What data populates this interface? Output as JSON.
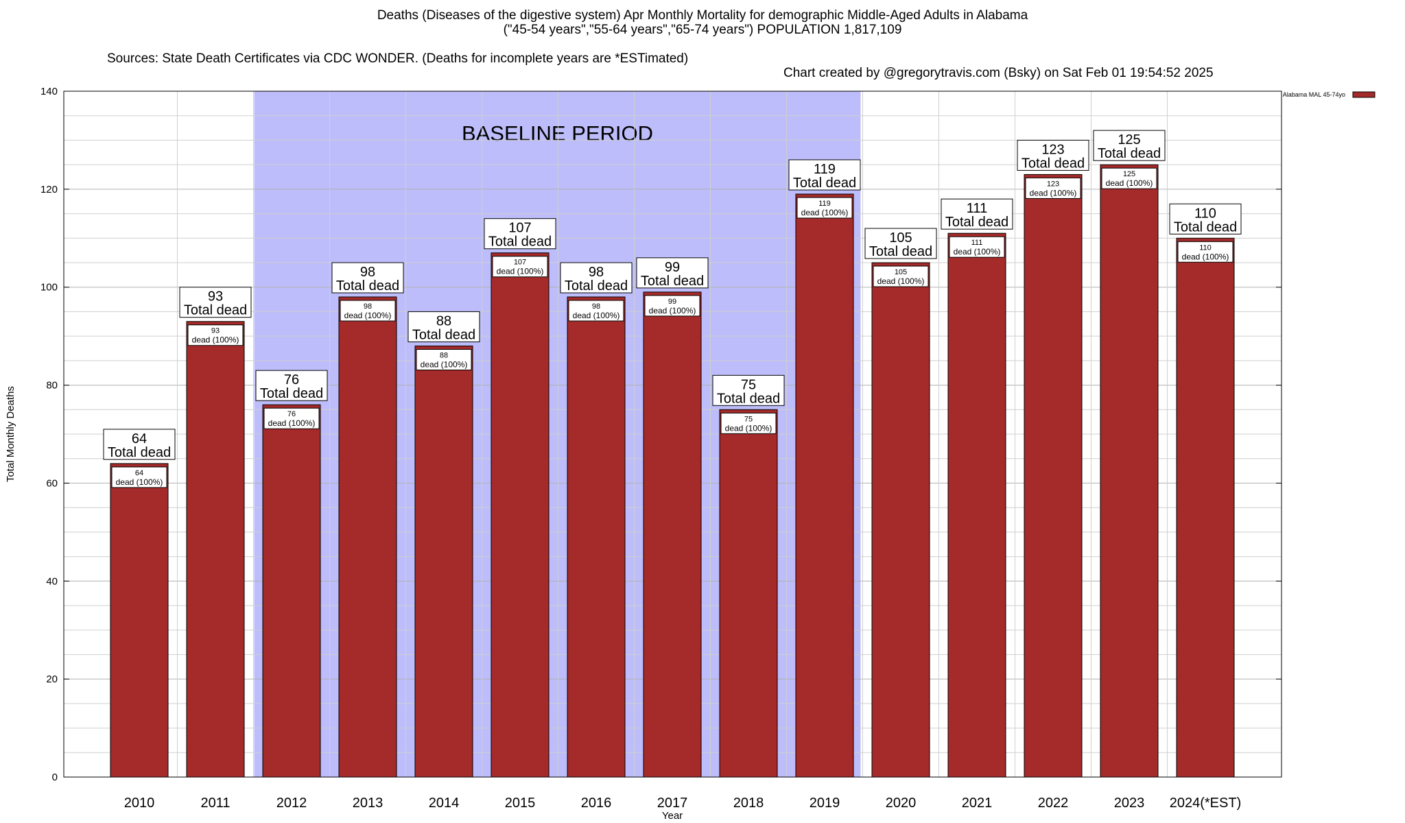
{
  "header": {
    "title_line1": "Deaths (Diseases of the digestive system) Apr Monthly Mortality for demographic Middle-Aged Adults in Alabama",
    "title_line2": "(\"45-54 years\",\"55-64 years\",\"65-74 years\") POPULATION 1,817,109",
    "sources": "Sources: State Death Certificates via CDC WONDER. (Deaths for incomplete years are *ESTimated)",
    "credit": "Chart created by @gregorytravis.com (Bsky) on Sat Feb 01 19:54:52 2025"
  },
  "chart_data": {
    "type": "bar",
    "xlabel": "Year",
    "ylabel": "Total Monthly Deaths",
    "ylim": [
      0,
      140
    ],
    "y_ticks": [
      0,
      20,
      40,
      60,
      80,
      100,
      120,
      140
    ],
    "y_minor_step": 5,
    "grid": true,
    "legend": {
      "placement": "top-right",
      "entries": [
        "Alabama MAL 45-74yo"
      ]
    },
    "categories": [
      "2010",
      "2011",
      "2012",
      "2013",
      "2014",
      "2015",
      "2016",
      "2017",
      "2018",
      "2019",
      "2020",
      "2021",
      "2022",
      "2023",
      "2024(*EST)"
    ],
    "series": [
      {
        "name": "Alabama MAL 45-74yo",
        "color": "#a52a2a",
        "values": [
          64,
          93,
          76,
          98,
          88,
          107,
          98,
          99,
          75,
          119,
          105,
          111,
          123,
          125,
          110
        ]
      }
    ],
    "top_label_suffix": "Total dead",
    "inner_label_suffix": "dead (100%)",
    "baseline_period": {
      "label": "BASELINE PERIOD",
      "from": "2012",
      "to": "2019",
      "color": "#bdbdfb"
    }
  }
}
